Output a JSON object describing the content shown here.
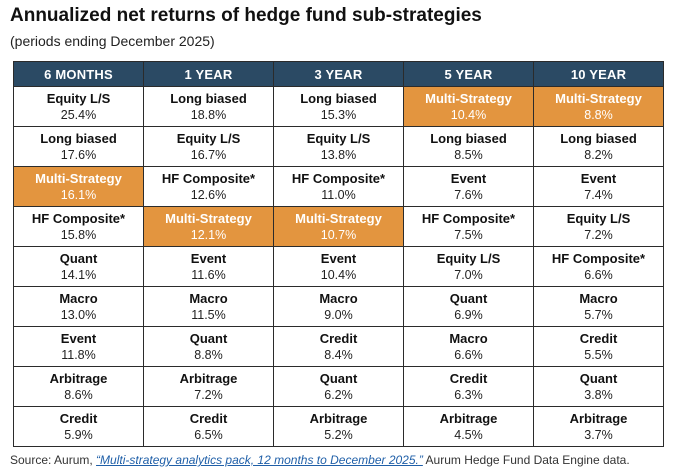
{
  "title": "Annualized net returns of hedge fund sub-strategies",
  "subtitle": "(periods ending December 2025)",
  "colors": {
    "header_bg": "#2b4a64",
    "highlight_bg": "#e3953f",
    "border": "#2b2b2b"
  },
  "highlight_strategy": "Multi-Strategy",
  "chart_data": {
    "type": "table",
    "columns": [
      "6 MONTHS",
      "1 YEAR",
      "3 YEAR",
      "5 YEAR",
      "10 YEAR"
    ],
    "rows": [
      [
        {
          "name": "Equity L/S",
          "value": "25.4%"
        },
        {
          "name": "Long biased",
          "value": "18.8%"
        },
        {
          "name": "Long biased",
          "value": "15.3%"
        },
        {
          "name": "Multi-Strategy",
          "value": "10.4%"
        },
        {
          "name": "Multi-Strategy",
          "value": "8.8%"
        }
      ],
      [
        {
          "name": "Long biased",
          "value": "17.6%"
        },
        {
          "name": "Equity L/S",
          "value": "16.7%"
        },
        {
          "name": "Equity L/S",
          "value": "13.8%"
        },
        {
          "name": "Long biased",
          "value": "8.5%"
        },
        {
          "name": "Long biased",
          "value": "8.2%"
        }
      ],
      [
        {
          "name": "Multi-Strategy",
          "value": "16.1%"
        },
        {
          "name": "HF Composite*",
          "value": "12.6%"
        },
        {
          "name": "HF Composite*",
          "value": "11.0%"
        },
        {
          "name": "Event",
          "value": "7.6%"
        },
        {
          "name": "Event",
          "value": "7.4%"
        }
      ],
      [
        {
          "name": "HF Composite*",
          "value": "15.8%"
        },
        {
          "name": "Multi-Strategy",
          "value": "12.1%"
        },
        {
          "name": "Multi-Strategy",
          "value": "10.7%"
        },
        {
          "name": "HF Composite*",
          "value": "7.5%"
        },
        {
          "name": "Equity L/S",
          "value": "7.2%"
        }
      ],
      [
        {
          "name": "Quant",
          "value": "14.1%"
        },
        {
          "name": "Event",
          "value": "11.6%"
        },
        {
          "name": "Event",
          "value": "10.4%"
        },
        {
          "name": "Equity L/S",
          "value": "7.0%"
        },
        {
          "name": "HF Composite*",
          "value": "6.6%"
        }
      ],
      [
        {
          "name": "Macro",
          "value": "13.0%"
        },
        {
          "name": "Macro",
          "value": "11.5%"
        },
        {
          "name": "Macro",
          "value": "9.0%"
        },
        {
          "name": "Quant",
          "value": "6.9%"
        },
        {
          "name": "Macro",
          "value": "5.7%"
        }
      ],
      [
        {
          "name": "Event",
          "value": "11.8%"
        },
        {
          "name": "Quant",
          "value": "8.8%"
        },
        {
          "name": "Credit",
          "value": "8.4%"
        },
        {
          "name": "Macro",
          "value": "6.6%"
        },
        {
          "name": "Credit",
          "value": "5.5%"
        }
      ],
      [
        {
          "name": "Arbitrage",
          "value": "8.6%"
        },
        {
          "name": "Arbitrage",
          "value": "7.2%"
        },
        {
          "name": "Quant",
          "value": "6.2%"
        },
        {
          "name": "Credit",
          "value": "6.3%"
        },
        {
          "name": "Quant",
          "value": "3.8%"
        }
      ],
      [
        {
          "name": "Credit",
          "value": "5.9%"
        },
        {
          "name": "Credit",
          "value": "6.5%"
        },
        {
          "name": "Arbitrage",
          "value": "5.2%"
        },
        {
          "name": "Arbitrage",
          "value": "4.5%"
        },
        {
          "name": "Arbitrage",
          "value": "3.7%"
        }
      ]
    ]
  },
  "source": {
    "prefix": "Source: Aurum, ",
    "link_text": "“Multi-strategy analytics pack, 12 months to December 2025.”",
    "suffix": " Aurum Hedge Fund Data Engine data."
  }
}
